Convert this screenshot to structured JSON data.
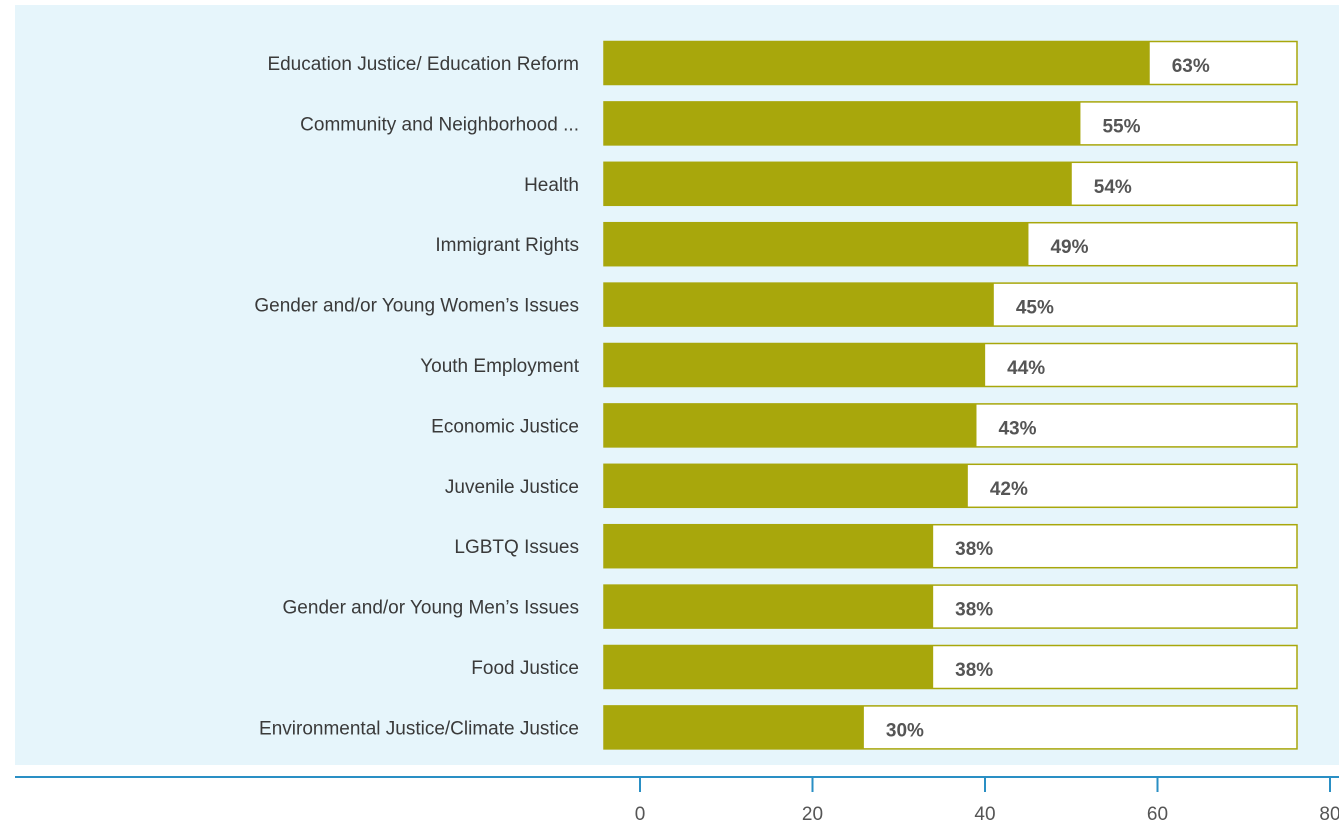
{
  "chart_data": {
    "type": "bar",
    "orientation": "horizontal",
    "categories": [
      "Education Justice/ Education Reform",
      "Community and Neighborhood ...",
      "Health",
      "Immigrant Rights",
      "Gender and/or Young Women’s Issues",
      "Youth Employment",
      "Economic Justice",
      "Juvenile Justice",
      "LGBTQ Issues",
      "Gender and/or Young Men’s Issues",
      "Food Justice",
      "Environmental Justice/Climate Justice"
    ],
    "values": [
      63,
      55,
      54,
      49,
      45,
      44,
      43,
      42,
      38,
      38,
      38,
      30
    ],
    "value_labels": [
      "63%",
      "55%",
      "54%",
      "49%",
      "45%",
      "44%",
      "43%",
      "42%",
      "38%",
      "38%",
      "38%",
      "30%"
    ],
    "color": "#a8a70c",
    "xlim": [
      0,
      80
    ],
    "xticks": [
      0,
      20,
      40,
      60,
      80
    ]
  }
}
